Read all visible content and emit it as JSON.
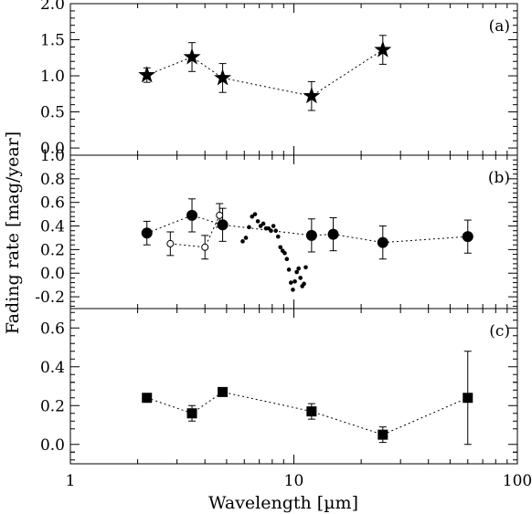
{
  "chart_data": {
    "type": "scatter",
    "xlabel": "Wavelength [µm]",
    "ylabel": "Fading rate [mag/year]",
    "xscale": "log",
    "xlim": [
      1,
      100
    ],
    "x_ticks": [
      1,
      10,
      100
    ],
    "x_tick_labels": [
      "1",
      "10",
      "100"
    ],
    "panels": [
      {
        "label": "(a)",
        "ylim": [
          -0.1,
          2.0
        ],
        "y_ticks": [
          0.0,
          0.5,
          1.0,
          1.5,
          2.0
        ],
        "y_tick_labels": [
          "0.0",
          "0.5",
          "1.0",
          "1.5",
          "2.0"
        ],
        "series": [
          {
            "marker": "star",
            "connected": true,
            "x": [
              2.2,
              3.5,
              4.8,
              12,
              25
            ],
            "y": [
              1.01,
              1.26,
              0.97,
              0.72,
              1.36
            ],
            "yerr": [
              0.1,
              0.2,
              0.2,
              0.2,
              0.2
            ]
          }
        ]
      },
      {
        "label": "(b)",
        "ylim": [
          -0.3,
          1.0
        ],
        "y_ticks": [
          -0.2,
          0.0,
          0.2,
          0.4,
          0.6,
          0.8,
          1.0
        ],
        "y_tick_labels": [
          "-0.2",
          "0.0",
          "0.2",
          "0.4",
          "0.6",
          "0.8",
          "1.0"
        ],
        "series": [
          {
            "marker": "filled-circle",
            "connected": true,
            "x": [
              2.2,
              3.5,
              4.8,
              12,
              15,
              25,
              60
            ],
            "y": [
              0.34,
              0.49,
              0.41,
              0.32,
              0.33,
              0.26,
              0.31
            ],
            "yerr": [
              0.1,
              0.14,
              0.14,
              0.14,
              0.14,
              0.14,
              0.14
            ]
          },
          {
            "marker": "open-circle",
            "connected": true,
            "x": [
              2.8,
              4.0,
              4.65
            ],
            "y": [
              0.25,
              0.22,
              0.49
            ],
            "yerr": [
              0.1,
              0.1,
              0.1
            ]
          },
          {
            "marker": "small-dot",
            "connected": false,
            "x": [
              5.9,
              6.1,
              6.3,
              6.5,
              6.7,
              6.9,
              7.1,
              7.3,
              7.5,
              7.7,
              7.9,
              8.1,
              8.3,
              8.5,
              8.7,
              8.9,
              9.1,
              9.3,
              9.5,
              9.7,
              9.9,
              10.1,
              10.3,
              10.5,
              10.7,
              10.9,
              11.1,
              11.3
            ],
            "y": [
              0.27,
              0.3,
              0.39,
              0.48,
              0.5,
              0.44,
              0.4,
              0.42,
              0.38,
              0.38,
              0.36,
              0.4,
              0.36,
              0.31,
              0.22,
              0.19,
              0.17,
              0.12,
              0.03,
              -0.08,
              -0.14,
              -0.07,
              0.01,
              0.04,
              -0.04,
              -0.11,
              -0.09,
              0.05
            ],
            "yerr": []
          }
        ]
      },
      {
        "label": "(c)",
        "ylim": [
          -0.1,
          0.7
        ],
        "y_ticks": [
          0.0,
          0.2,
          0.4,
          0.6
        ],
        "y_tick_labels": [
          "0.0",
          "0.2",
          "0.4",
          "0.6"
        ],
        "series": [
          {
            "marker": "filled-square",
            "connected": true,
            "x": [
              2.2,
              3.5,
              4.8,
              12,
              25,
              60
            ],
            "y": [
              0.24,
              0.16,
              0.27,
              0.17,
              0.05,
              0.24
            ],
            "yerr": [
              0.02,
              0.04,
              0.02,
              0.04,
              0.04,
              0.24
            ]
          }
        ]
      }
    ]
  }
}
